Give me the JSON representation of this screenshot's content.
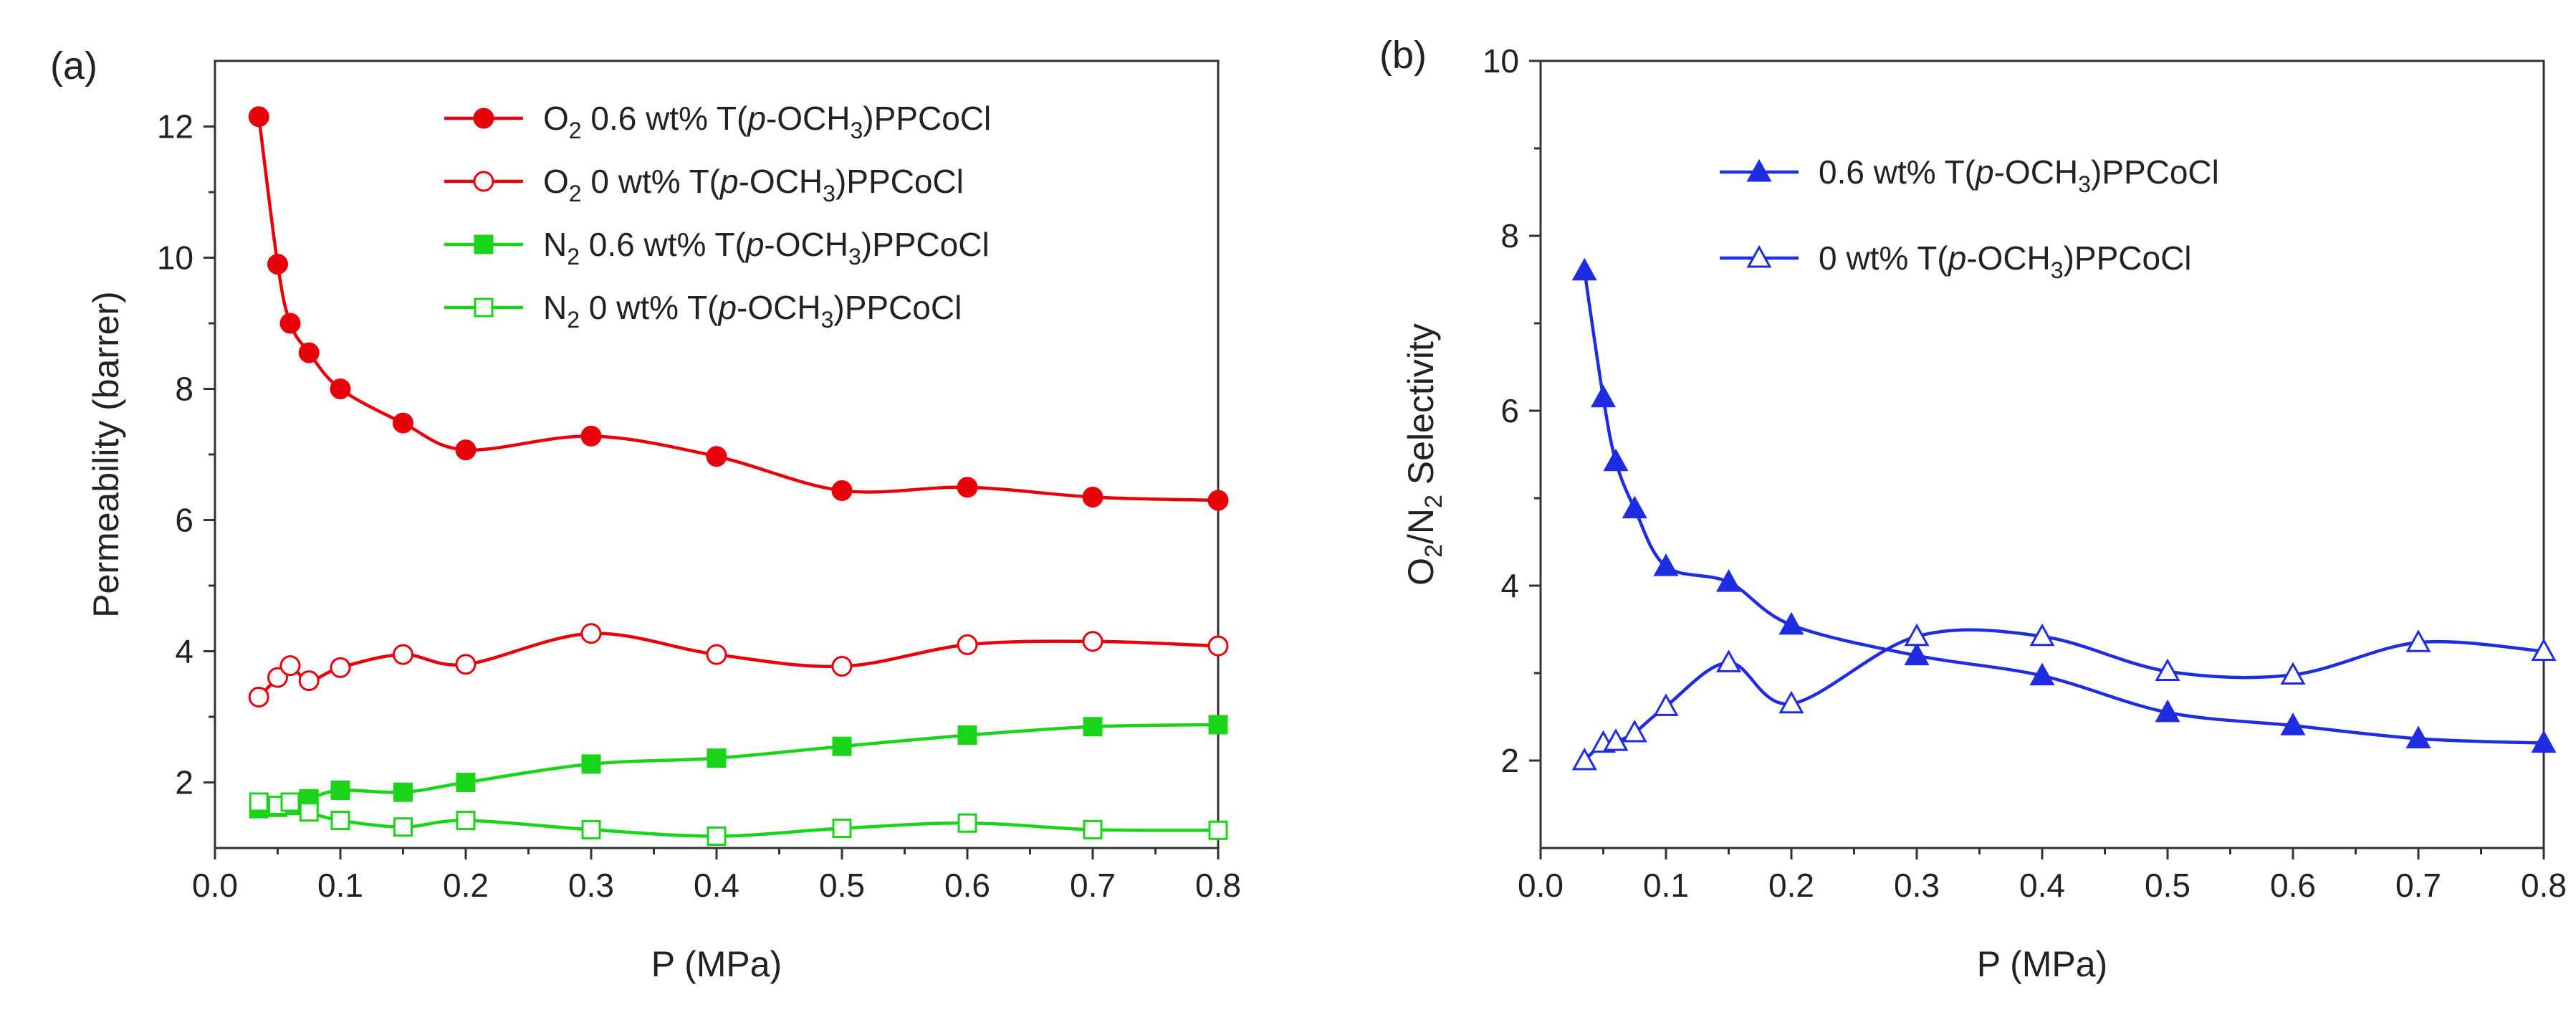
{
  "chart_data": [
    {
      "type": "line",
      "panel_label": "(a)",
      "xlabel": "P (MPa)",
      "ylabel": "Permeability (barrer)",
      "xlim": [
        0.0,
        0.8
      ],
      "ylim": [
        1.0,
        13.0
      ],
      "xticks": [
        "0.0",
        "0.1",
        "0.2",
        "0.3",
        "0.4",
        "0.5",
        "0.6",
        "0.7",
        "0.8"
      ],
      "yticks": [
        "2",
        "4",
        "6",
        "8",
        "10",
        "12"
      ],
      "legend_position": "top-right",
      "series": [
        {
          "gas": "O",
          "gas_sub": "2",
          "pre": " 0.6 wt% T(",
          "italic": "p",
          "mid": "-OCH",
          "sub": "3",
          "post": ")PPCoCl",
          "color": "#e8000b",
          "marker": "circle",
          "filled": true,
          "x": [
            0.035,
            0.05,
            0.06,
            0.075,
            0.1,
            0.15,
            0.2,
            0.3,
            0.4,
            0.5,
            0.6,
            0.7,
            0.8
          ],
          "values": [
            12.15,
            9.9,
            9.0,
            8.55,
            8.0,
            7.48,
            7.07,
            7.28,
            6.97,
            6.45,
            6.5,
            6.35,
            6.3
          ]
        },
        {
          "gas": "O",
          "gas_sub": "2",
          "pre": " 0 wt% T(",
          "italic": "p",
          "mid": "-OCH",
          "sub": "3",
          "post": ")PPCoCl",
          "color": "#e8000b",
          "marker": "circle",
          "filled": false,
          "x": [
            0.035,
            0.05,
            0.06,
            0.075,
            0.1,
            0.15,
            0.2,
            0.3,
            0.4,
            0.5,
            0.6,
            0.7,
            0.8
          ],
          "values": [
            3.3,
            3.6,
            3.78,
            3.55,
            3.75,
            3.95,
            3.8,
            4.27,
            3.95,
            3.77,
            4.1,
            4.15,
            4.08
          ]
        },
        {
          "gas": "N",
          "gas_sub": "2",
          "pre": " 0.6 wt% T(",
          "italic": "p",
          "mid": "-OCH",
          "sub": "3",
          "post": ")PPCoCl",
          "color": "#19d419",
          "marker": "square",
          "filled": true,
          "x": [
            0.035,
            0.05,
            0.06,
            0.075,
            0.1,
            0.15,
            0.2,
            0.3,
            0.4,
            0.5,
            0.6,
            0.7,
            0.8
          ],
          "values": [
            1.6,
            1.62,
            1.65,
            1.75,
            1.88,
            1.85,
            2.0,
            2.28,
            2.37,
            2.55,
            2.72,
            2.85,
            2.88
          ]
        },
        {
          "gas": "N",
          "gas_sub": "2",
          "pre": " 0 wt% T(",
          "italic": "p",
          "mid": "-OCH",
          "sub": "3",
          "post": ")PPCoCl",
          "color": "#19d419",
          "marker": "square",
          "filled": false,
          "x": [
            0.035,
            0.05,
            0.06,
            0.075,
            0.1,
            0.15,
            0.2,
            0.3,
            0.4,
            0.5,
            0.6,
            0.7,
            0.8
          ],
          "values": [
            1.7,
            1.65,
            1.7,
            1.55,
            1.42,
            1.32,
            1.42,
            1.28,
            1.18,
            1.3,
            1.38,
            1.28,
            1.27
          ]
        }
      ]
    },
    {
      "type": "line",
      "panel_label": "(b)",
      "xlabel": "P (MPa)",
      "ylabel_parts": {
        "a": "O",
        "a_sub": "2",
        "b": "/N",
        "b_sub": "2",
        "c": " Selectivity"
      },
      "xlim": [
        0.0,
        0.8
      ],
      "ylim": [
        1.0,
        10.0
      ],
      "xticks": [
        "0.0",
        "0.1",
        "0.2",
        "0.3",
        "0.4",
        "0.5",
        "0.6",
        "0.7",
        "0.8"
      ],
      "yticks": [
        "2",
        "4",
        "6",
        "8",
        "10"
      ],
      "legend_position": "top-right",
      "series": [
        {
          "gas": "",
          "gas_sub": "",
          "pre": "0.6 wt% T(",
          "italic": "p",
          "mid": "-OCH",
          "sub": "3",
          "post": ")PPCoCl",
          "color": "#1f2de0",
          "marker": "triangle",
          "filled": true,
          "x": [
            0.035,
            0.05,
            0.06,
            0.075,
            0.1,
            0.15,
            0.2,
            0.3,
            0.4,
            0.5,
            0.6,
            0.7,
            0.8
          ],
          "values": [
            7.6,
            6.15,
            5.42,
            4.88,
            4.22,
            4.04,
            3.55,
            3.2,
            2.97,
            2.55,
            2.4,
            2.25,
            2.2
          ]
        },
        {
          "gas": "",
          "gas_sub": "",
          "pre": "0 wt% T(",
          "italic": "p",
          "mid": "-OCH",
          "sub": "3",
          "post": ")PPCoCl",
          "color": "#1f2de0",
          "marker": "triangle",
          "filled": false,
          "x": [
            0.035,
            0.05,
            0.06,
            0.075,
            0.1,
            0.15,
            0.2,
            0.3,
            0.4,
            0.5,
            0.6,
            0.7,
            0.8
          ],
          "values": [
            2.0,
            2.2,
            2.22,
            2.32,
            2.62,
            3.12,
            2.65,
            3.42,
            3.42,
            3.02,
            2.98,
            3.35,
            3.25
          ]
        }
      ]
    }
  ]
}
